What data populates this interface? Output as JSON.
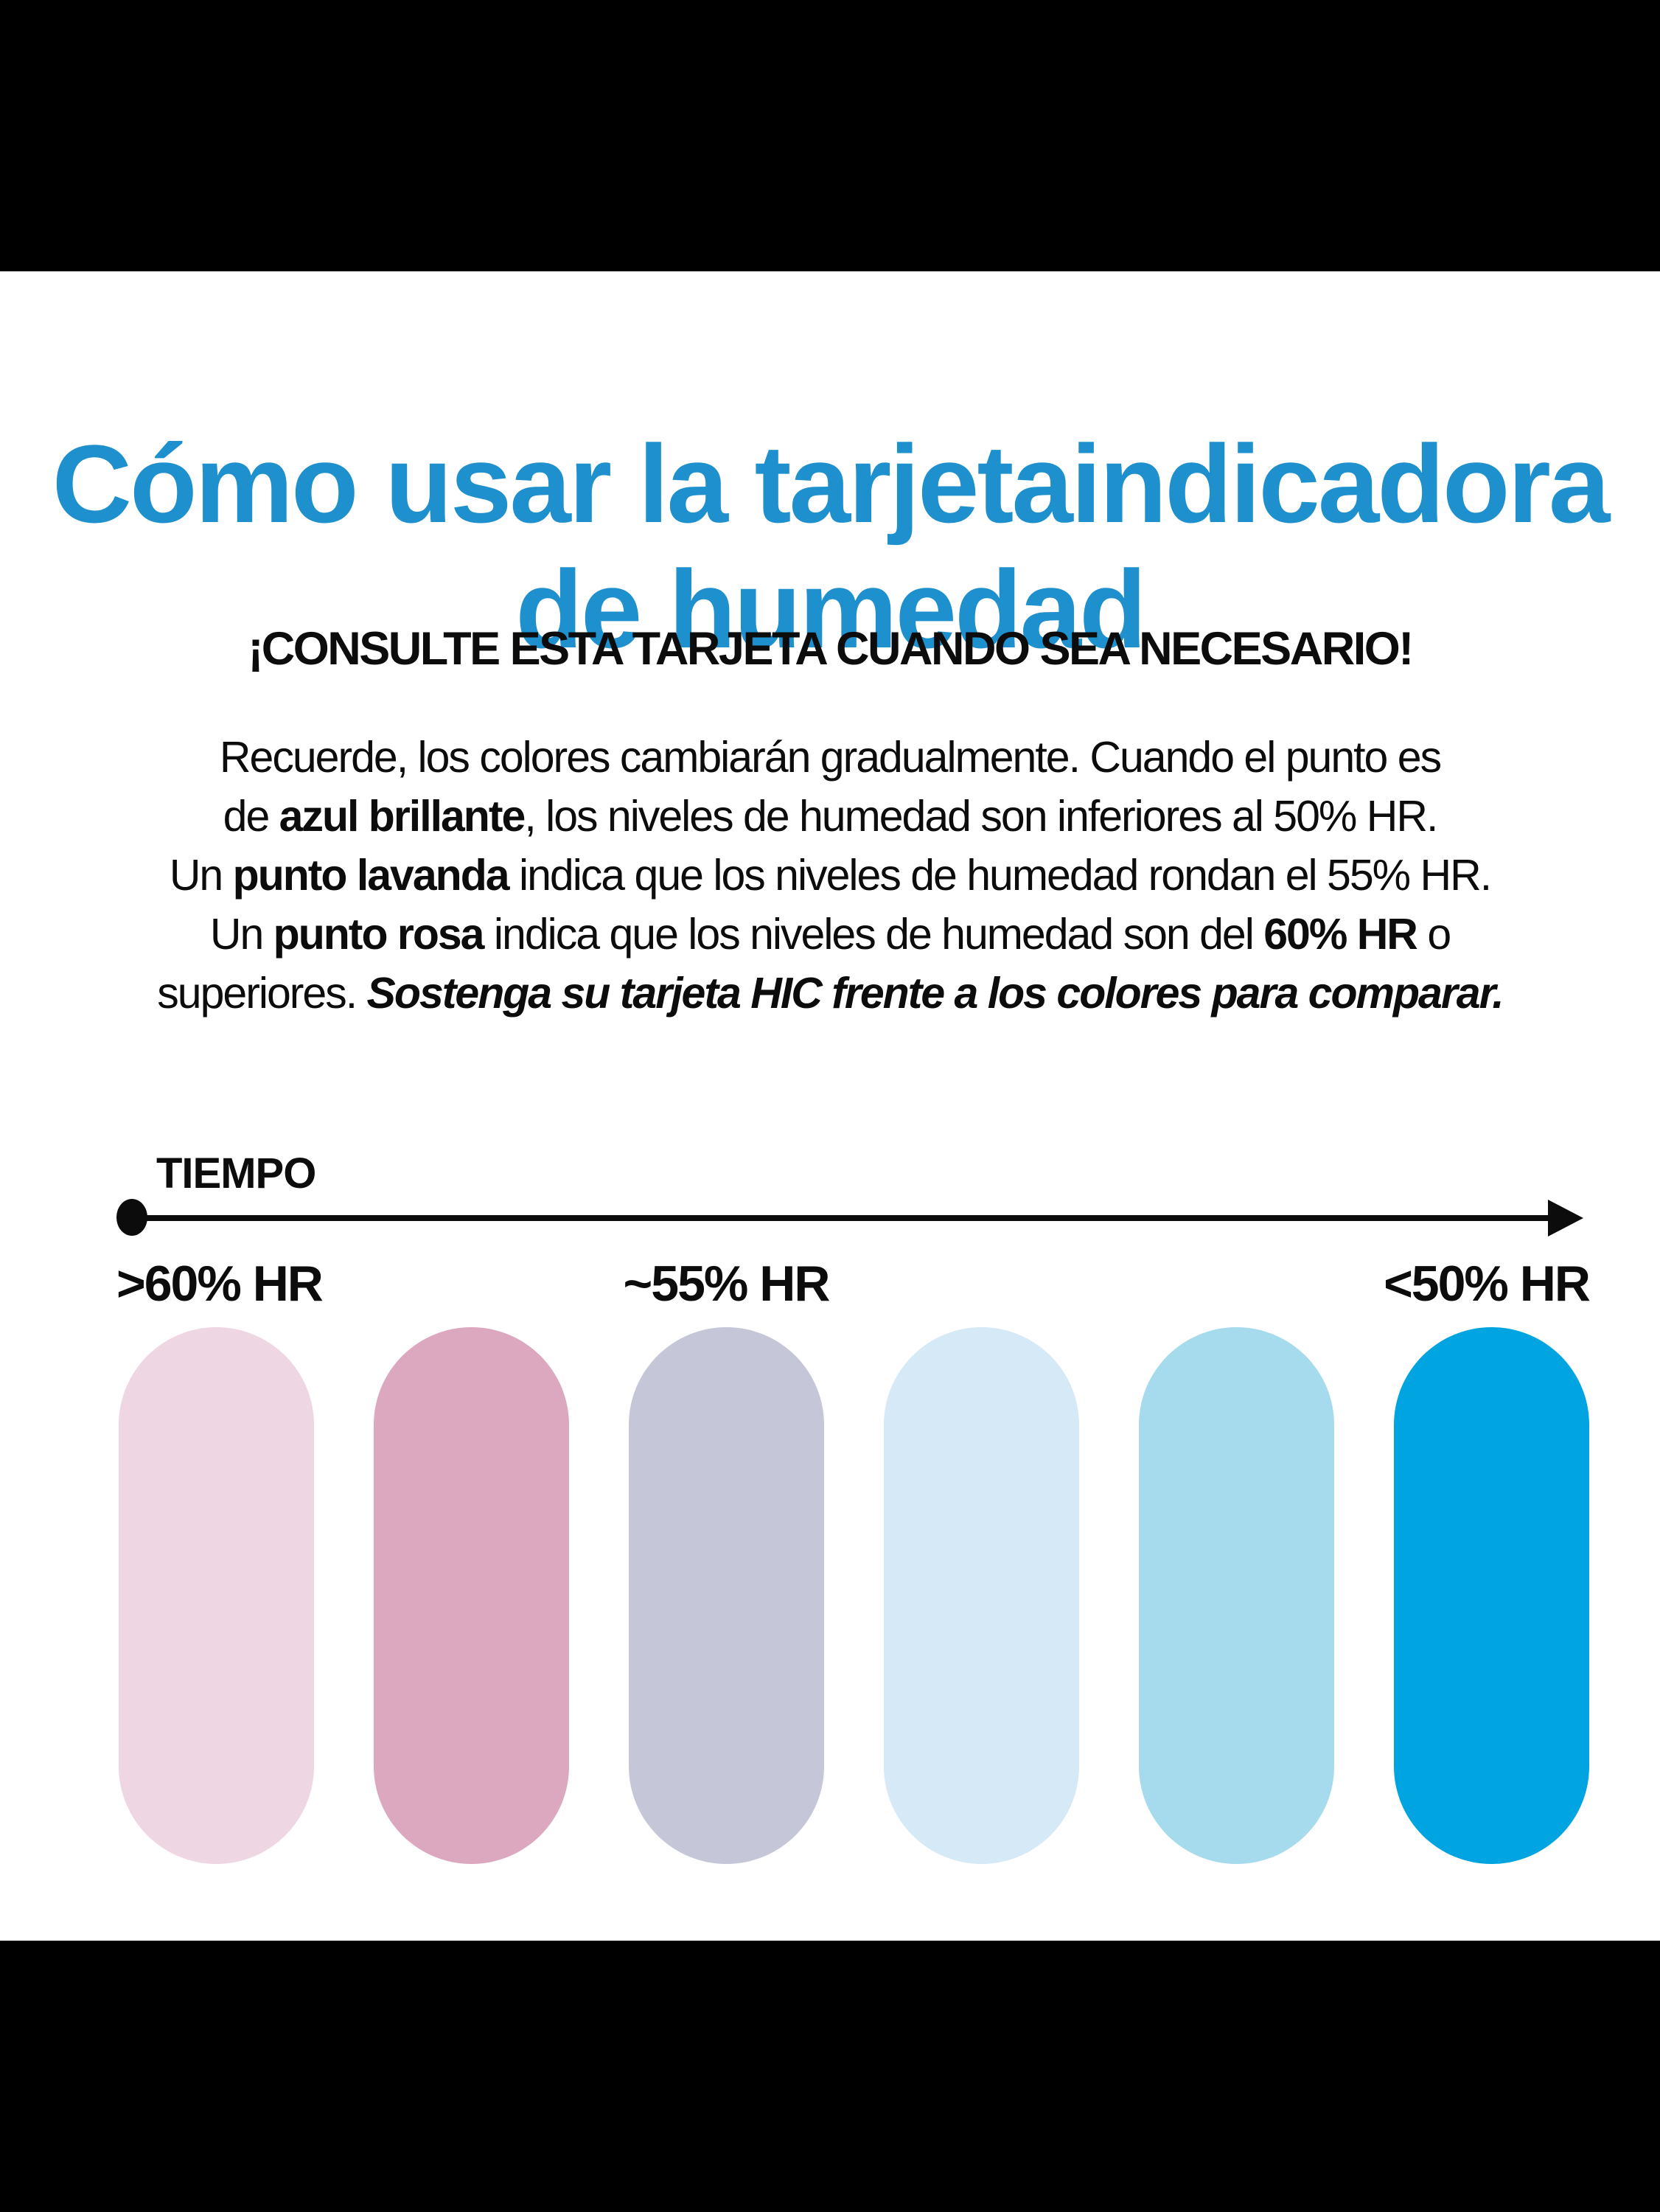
{
  "title": {
    "line1": "Cómo usar la tarjeta",
    "line2": "indicadora de humedad",
    "color": "#1e90cd"
  },
  "subtitle": "¡CONSULTE ESTA TARJETA CUANDO SEA NECESARIO!",
  "paragraph": {
    "l1": "Recuerde, los colores cambiarán gradualmente. Cuando el punto es",
    "l2a": "de ",
    "l2b": "azul brillante",
    "l2c": ", los niveles de humedad son inferiores al 50% HR.",
    "l3a": "Un ",
    "l3b": "punto lavanda",
    "l3c": " indica que los niveles de humedad rondan el 55% HR.",
    "l4a": "Un ",
    "l4b": "punto rosa",
    "l4c": " indica que los niveles de humedad son del ",
    "l4d": "60% HR",
    "l4e": " o",
    "l5a": "superiores. ",
    "l5b": "Sostenga su tarjeta HIC frente a los colores para comparar."
  },
  "timeline": {
    "label": "TIEMPO",
    "markers": [
      {
        "label": ">60% HR"
      },
      {
        "label": "~55% HR"
      },
      {
        "label": "<50% HR"
      }
    ]
  },
  "swatches": [
    {
      "name": "rosa-palido",
      "color": "#eed7e3"
    },
    {
      "name": "rosa",
      "color": "#dba8c0"
    },
    {
      "name": "lavanda",
      "color": "#c5c7d8"
    },
    {
      "name": "azul-palido",
      "color": "#d5eaf6"
    },
    {
      "name": "azul-claro",
      "color": "#a6dbee"
    },
    {
      "name": "azul-brillante",
      "color": "#00a4e0"
    }
  ]
}
